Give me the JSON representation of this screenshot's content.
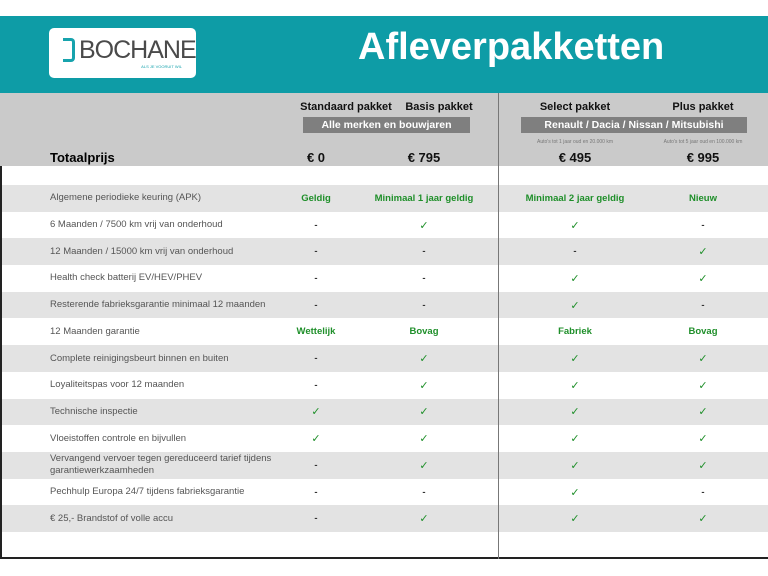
{
  "header": {
    "brand": "BOCHANE",
    "tagline": "ALS JE VOORUIT WIL",
    "title": "Afleverpakketten"
  },
  "colors": {
    "teal": "#0e9ca6",
    "check": "#1f8f2a",
    "header_gray": "#cacaca",
    "row_gray": "#e3e3e3"
  },
  "packages": [
    {
      "name": "Standaard pakket",
      "price": "€ 0"
    },
    {
      "name": "Basis pakket",
      "price": "€ 795"
    },
    {
      "name": "Select pakket",
      "price": "€ 495",
      "note": "Auto's tot 1 jaar oud en 20.000 km"
    },
    {
      "name": "Plus pakket",
      "price": "€ 995",
      "note": "Auto's tot 5 jaar oud en 100.000 km"
    }
  ],
  "groups": {
    "left": "Alle merken en bouwjaren",
    "right": "Renault / Dacia / Nissan / Mitsubishi"
  },
  "total_label": "Totaalprijs",
  "rows": [
    {
      "label": "Algemene periodieke keuring (APK)",
      "values": [
        "Geldig",
        "Minimaal 1 jaar geldig",
        "Minimaal 2 jaar geldig",
        "Nieuw"
      ]
    },
    {
      "label": "6 Maanden / 7500 km vrij van onderhoud",
      "values": [
        "-",
        "✓",
        "✓",
        "-"
      ]
    },
    {
      "label": "12 Maanden / 15000 km vrij van onderhoud",
      "values": [
        "-",
        "-",
        "-",
        "✓"
      ]
    },
    {
      "label": "Health check batterij EV/HEV/PHEV",
      "values": [
        "-",
        "-",
        "✓",
        "✓"
      ]
    },
    {
      "label": "Resterende fabrieksgarantie minimaal 12 maanden",
      "values": [
        "-",
        "-",
        "✓",
        "-"
      ]
    },
    {
      "label": "12 Maanden  garantie",
      "values": [
        "Wettelijk",
        "Bovag",
        "Fabriek",
        "Bovag"
      ]
    },
    {
      "label": "Complete reinigingsbeurt binnen en buiten",
      "values": [
        "-",
        "✓",
        "✓",
        "✓"
      ]
    },
    {
      "label": "Loyaliteitspas voor 12 maanden",
      "values": [
        "-",
        "✓",
        "✓",
        "✓"
      ]
    },
    {
      "label": "Technische inspectie",
      "values": [
        "✓",
        "✓",
        "✓",
        "✓"
      ]
    },
    {
      "label": "Vloeistoffen controle en bijvullen",
      "values": [
        "✓",
        "✓",
        "✓",
        "✓"
      ]
    },
    {
      "label": "Vervangend vervoer tegen gereduceerd tarief tijdens garantiewerkzaamheden",
      "values": [
        "-",
        "✓",
        "✓",
        "✓"
      ]
    },
    {
      "label": "Pechhulp Europa 24/7 tijdens fabrieksgarantie",
      "values": [
        "-",
        "-",
        "✓",
        "-"
      ]
    },
    {
      "label": "€ 25,- Brandstof of  volle accu",
      "values": [
        "-",
        "✓",
        "✓",
        "✓"
      ]
    }
  ]
}
